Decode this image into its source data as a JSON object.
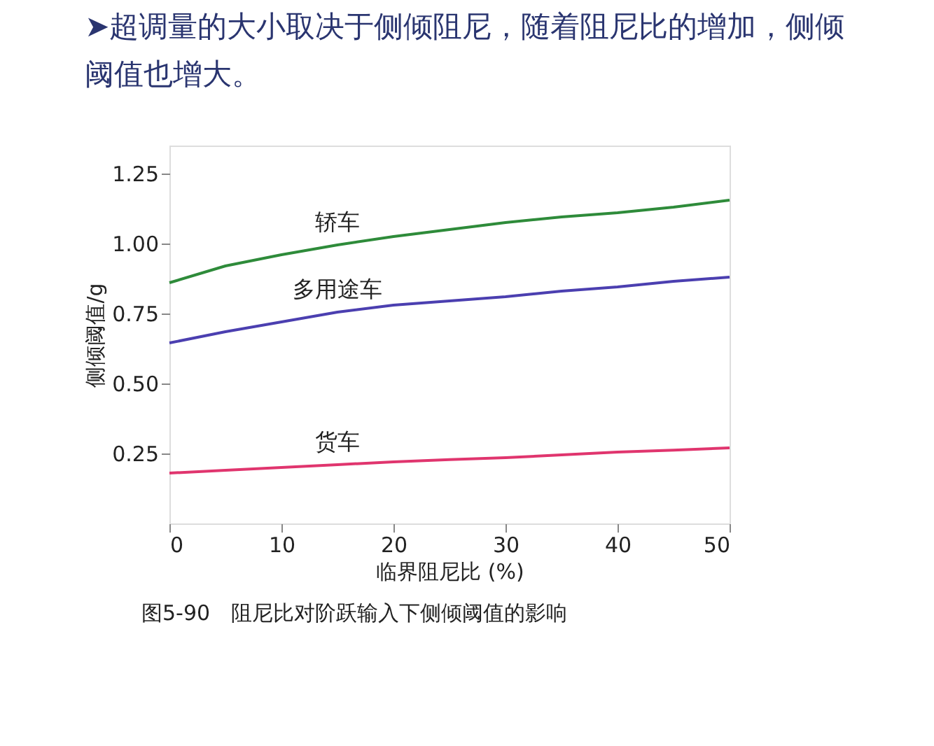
{
  "chart_data": {
    "type": "line",
    "title": "➤超调量的大小取决于侧倾阻尼，随着阻尼比的增加，侧倾阈值也增大。",
    "xlabel": "临界阻尼比 (%)",
    "ylabel": "侧倾阈值/g",
    "x": [
      0,
      5,
      10,
      15,
      20,
      25,
      30,
      35,
      40,
      45,
      50
    ],
    "series": [
      {
        "name": "轿车",
        "color": "#2e8b3a",
        "values": [
          0.86,
          0.92,
          0.96,
          0.995,
          1.025,
          1.05,
          1.075,
          1.095,
          1.11,
          1.13,
          1.155
        ]
      },
      {
        "name": "多用途车",
        "color": "#4b3fb0",
        "values": [
          0.645,
          0.685,
          0.72,
          0.755,
          0.78,
          0.795,
          0.81,
          0.83,
          0.845,
          0.865,
          0.88
        ]
      },
      {
        "name": "货车",
        "color": "#e0356e",
        "values": [
          0.18,
          0.19,
          0.2,
          0.21,
          0.22,
          0.228,
          0.235,
          0.245,
          0.255,
          0.262,
          0.27
        ]
      }
    ],
    "xlim": [
      0,
      50
    ],
    "xticks": [
      0,
      10,
      20,
      30,
      40,
      50
    ],
    "ylim": [
      0,
      1.35
    ],
    "yticks": [
      0.25,
      {
        "value": 0.5,
        "label": "0.50"
      },
      0.75,
      {
        "value": 1,
        "label": "1.00"
      },
      1.25
    ],
    "grid": false,
    "legend": false,
    "marker": "none",
    "line_style": "solid",
    "annotations": [
      "图5-90　阻尼比对阶跃输入下侧倾阈值的影响"
    ]
  }
}
